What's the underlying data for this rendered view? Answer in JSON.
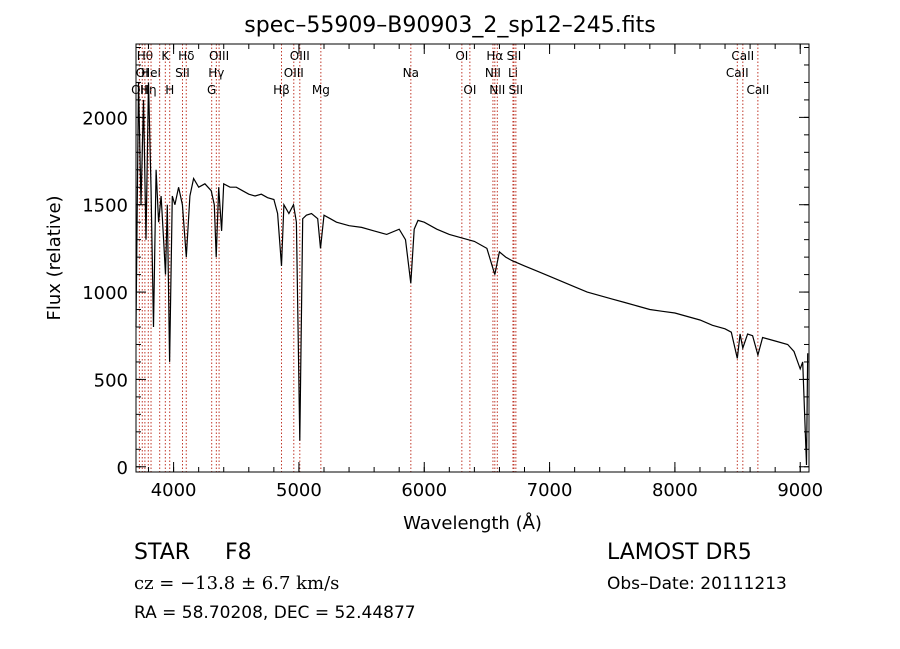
{
  "chart_data": {
    "type": "line",
    "title": "spec–55909–B90903_2_sp12–245.fits",
    "xlabel": "Wavelength (Å)",
    "ylabel": "Flux (relative)",
    "xlim": [
      3700,
      9070
    ],
    "ylim": [
      -30,
      2420
    ],
    "xticks": [
      4000,
      5000,
      6000,
      7000,
      8000,
      9000
    ],
    "yticks": [
      0,
      500,
      1000,
      1500,
      2000
    ],
    "grid": false,
    "line_color": "#000000",
    "marker_color": "#c0392b",
    "series": [
      {
        "x": [
          3700,
          3720,
          3740,
          3760,
          3780,
          3800,
          3820,
          3840,
          3860,
          3880,
          3900,
          3920,
          3935,
          3950,
          3968,
          3990,
          4010,
          4040,
          4070,
          4101,
          4130,
          4160,
          4200,
          4250,
          4300,
          4325,
          4340,
          4360,
          4383,
          4400,
          4450,
          4500,
          4550,
          4600,
          4650,
          4700,
          4750,
          4800,
          4830,
          4861,
          4880,
          4920,
          4957,
          4980,
          5007,
          5030,
          5060,
          5100,
          5150,
          5172,
          5200,
          5250,
          5300,
          5400,
          5500,
          5600,
          5700,
          5800,
          5850,
          5893,
          5920,
          5950,
          6000,
          6100,
          6200,
          6300,
          6400,
          6500,
          6563,
          6600,
          6650,
          6700,
          6800,
          6900,
          7000,
          7100,
          7200,
          7300,
          7400,
          7500,
          7600,
          7700,
          7800,
          7900,
          8000,
          8100,
          8200,
          8300,
          8400,
          8450,
          8498,
          8520,
          8542,
          8580,
          8620,
          8662,
          8700,
          8800,
          8900,
          8950,
          9000,
          9020,
          9050,
          9060
        ],
        "y": [
          800,
          2200,
          1500,
          2100,
          1300,
          2200,
          1600,
          800,
          1700,
          1400,
          1550,
          1300,
          1100,
          1500,
          600,
          1550,
          1500,
          1600,
          1500,
          1200,
          1550,
          1650,
          1600,
          1620,
          1580,
          1500,
          1200,
          1600,
          1350,
          1620,
          1600,
          1600,
          1580,
          1560,
          1550,
          1560,
          1540,
          1530,
          1450,
          1150,
          1500,
          1450,
          1500,
          1400,
          150,
          1420,
          1440,
          1450,
          1420,
          1250,
          1440,
          1420,
          1400,
          1380,
          1370,
          1350,
          1330,
          1360,
          1300,
          1050,
          1360,
          1410,
          1400,
          1360,
          1330,
          1310,
          1290,
          1250,
          1100,
          1230,
          1200,
          1180,
          1150,
          1120,
          1090,
          1060,
          1030,
          1000,
          980,
          960,
          940,
          920,
          900,
          890,
          880,
          860,
          840,
          810,
          790,
          770,
          620,
          760,
          680,
          760,
          750,
          640,
          740,
          720,
          700,
          660,
          560,
          600,
          10,
          650
        ]
      }
    ],
    "line_markers": [
      {
        "wl": 3727,
        "label": "OII",
        "row": 3
      },
      {
        "wl": 3750,
        "label": "OI",
        "row": 2
      },
      {
        "wl": 3771,
        "label": "Hθ",
        "row": 1
      },
      {
        "wl": 3798,
        "label": "Hη",
        "row": 3
      },
      {
        "wl": 3820,
        "label": "HeI",
        "row": 2
      },
      {
        "wl": 3889,
        "label": "",
        "row": 1
      },
      {
        "wl": 3934,
        "label": "K",
        "row": 1
      },
      {
        "wl": 3969,
        "label": "H",
        "row": 3
      },
      {
        "wl": 4071,
        "label": "SII",
        "row": 2
      },
      {
        "wl": 4101,
        "label": "Hδ",
        "row": 1
      },
      {
        "wl": 4304,
        "label": "G",
        "row": 3
      },
      {
        "wl": 4341,
        "label": "Hγ",
        "row": 2
      },
      {
        "wl": 4363,
        "label": "OIII",
        "row": 1
      },
      {
        "wl": 4861,
        "label": "Hβ",
        "row": 3
      },
      {
        "wl": 4959,
        "label": "OIII",
        "row": 2
      },
      {
        "wl": 5007,
        "label": "OIII",
        "row": 1
      },
      {
        "wl": 5175,
        "label": "Mg",
        "row": 3
      },
      {
        "wl": 5893,
        "label": "Na",
        "row": 2
      },
      {
        "wl": 6300,
        "label": "OI",
        "row": 1
      },
      {
        "wl": 6364,
        "label": "OI",
        "row": 3
      },
      {
        "wl": 6548,
        "label": "NII",
        "row": 2
      },
      {
        "wl": 6563,
        "label": "Hα",
        "row": 1
      },
      {
        "wl": 6583,
        "label": "NII",
        "row": 3
      },
      {
        "wl": 6708,
        "label": "Li",
        "row": 2
      },
      {
        "wl": 6716,
        "label": "SII",
        "row": 1
      },
      {
        "wl": 6731,
        "label": "SII",
        "row": 3
      },
      {
        "wl": 8498,
        "label": "CaII",
        "row": 2
      },
      {
        "wl": 8542,
        "label": "CaII",
        "row": 1
      },
      {
        "wl": 8662,
        "label": "CaII",
        "row": 3
      }
    ]
  },
  "info": {
    "object_class": "STAR",
    "subclass": "F8",
    "survey": "LAMOST DR5",
    "cz": "cz = −13.8 ± 6.7 km/s",
    "obs_date": "Obs–Date: 20111213",
    "coords": "RA =  58.70208, DEC =  52.44877"
  }
}
